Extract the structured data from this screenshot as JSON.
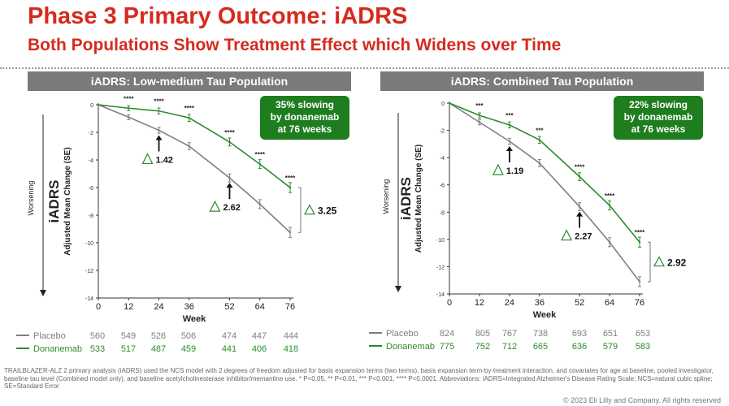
{
  "slide": {
    "title": "Phase 3 Primary Outcome: iADRS",
    "subtitle": "Both Populations Show Treatment Effect which Widens over Time",
    "footnote": "TRAILBLAZER-ALZ 2 primary analysis (iADRS) used the NCS model with 2 degrees of freedom adjusted for basis expansion terms (two terms), basis expansion term-by-treatment interaction, and covariates for age at baseline, pooled investigator, baseline tau level (Combined model only), and baseline acetylcholinesterase inhibitor/memantine use.  * P<0.05, ** P<0.01, *** P<0.001, **** P<0.0001. Abbreviations: iADRS=Integrated Alzheimer's Disease Rating Scale; NCS=natural cubic spline; SE=Standard Error",
    "copyright": "© 2023 Eli Lilly and Company. All rights reserved"
  },
  "colors": {
    "title": "#d52b1e",
    "placebo": "#7f7f7f",
    "donanemab": "#2e8b2e",
    "callout_bg": "#1e7d1e",
    "header_bg": "#7a7a7a"
  },
  "chart_data": [
    {
      "type": "line",
      "header": "iADRS: Low-medium Tau Population",
      "callout": [
        "35% slowing",
        "by donanemab",
        "at 76 weeks"
      ],
      "ylabel_main": "iADRS",
      "ylabel_sub": "Adjusted Mean Change (SE)",
      "direction_label": "Worsening",
      "xlabel": "Week",
      "x": [
        0,
        12,
        24,
        36,
        52,
        64,
        76
      ],
      "xticks": [
        "0",
        "12",
        "24",
        "36",
        "52",
        "64",
        "76"
      ],
      "yticks": [
        "0",
        "-2",
        "-4",
        "-6",
        "-8",
        "-10",
        "-12",
        "-14"
      ],
      "ylim": [
        -14,
        0
      ],
      "series": [
        {
          "name": "Placebo",
          "values": [
            0,
            -0.9,
            -1.85,
            -3.0,
            -5.3,
            -7.2,
            -9.25
          ],
          "n": [
            "560",
            "549",
            "526",
            "506",
            "474",
            "447",
            "444"
          ]
        },
        {
          "name": "Donanemab",
          "values": [
            0,
            -0.25,
            -0.45,
            -0.95,
            -2.7,
            -4.3,
            -6.0
          ],
          "n": [
            "533",
            "517",
            "487",
            "459",
            "441",
            "406",
            "418"
          ]
        }
      ],
      "significance": [
        "",
        "****",
        "****",
        "****",
        "****",
        "****",
        "****"
      ],
      "deltas": [
        {
          "label": "1.42",
          "x": 24
        },
        {
          "label": "2.62",
          "x": 52
        }
      ],
      "final_delta": "3.25"
    },
    {
      "type": "line",
      "header": "iADRS: Combined Tau Population",
      "callout": [
        "22% slowing",
        "by donanemab",
        "at 76 weeks"
      ],
      "ylabel_main": "iADRS",
      "ylabel_sub": "Adjusted Mean Change (SE)",
      "direction_label": "Worsening",
      "xlabel": "Week",
      "x": [
        0,
        12,
        24,
        36,
        52,
        64,
        76
      ],
      "xticks": [
        "0",
        "12",
        "24",
        "36",
        "52",
        "64",
        "76"
      ],
      "yticks": [
        "0",
        "-2",
        "-4",
        "-6",
        "-8",
        "-10",
        "-12",
        "-14"
      ],
      "ylim": [
        -14,
        0
      ],
      "series": [
        {
          "name": "Placebo",
          "values": [
            0,
            -1.4,
            -2.8,
            -4.4,
            -7.6,
            -10.2,
            -13.1
          ],
          "n": [
            "824",
            "805",
            "767",
            "738",
            "693",
            "651",
            "653"
          ]
        },
        {
          "name": "Donanemab",
          "values": [
            0,
            -0.9,
            -1.6,
            -2.7,
            -5.4,
            -7.5,
            -10.2
          ],
          "n": [
            "775",
            "752",
            "712",
            "665",
            "636",
            "579",
            "583"
          ]
        }
      ],
      "significance": [
        "",
        "***",
        "***",
        "***",
        "****",
        "****",
        "****"
      ],
      "deltas": [
        {
          "label": "1.19",
          "x": 24
        },
        {
          "label": "2.27",
          "x": 52
        }
      ],
      "final_delta": "2.92"
    }
  ]
}
